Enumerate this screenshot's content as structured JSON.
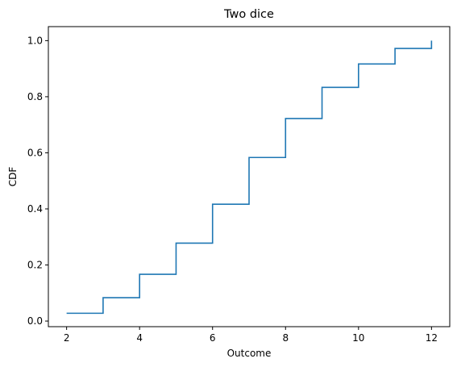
{
  "chart_data": {
    "type": "line",
    "drawstyle": "steps-post",
    "title": "Two dice",
    "xlabel": "Outcome",
    "ylabel": "CDF",
    "x": [
      2,
      3,
      4,
      5,
      6,
      7,
      8,
      9,
      10,
      11,
      12
    ],
    "y": [
      0.0278,
      0.0833,
      0.1667,
      0.2778,
      0.4167,
      0.5833,
      0.7222,
      0.8333,
      0.9167,
      0.9722,
      1.0
    ],
    "xlim": [
      1.5,
      12.5
    ],
    "ylim": [
      -0.02,
      1.05
    ],
    "xticks": [
      2,
      4,
      6,
      8,
      10,
      12
    ],
    "xtick_labels": [
      "2",
      "4",
      "6",
      "8",
      "10",
      "12"
    ],
    "yticks": [
      0.0,
      0.2,
      0.4,
      0.6,
      0.8,
      1.0
    ],
    "ytick_labels": [
      "0.0",
      "0.2",
      "0.4",
      "0.6",
      "0.8",
      "1.0"
    ],
    "grid": false,
    "line_color": "#1f77b4"
  }
}
